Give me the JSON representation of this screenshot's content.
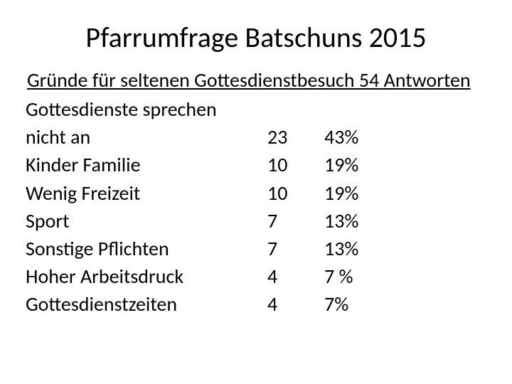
{
  "title": "Pfarrumfrage Batschuns 2015",
  "subtitle": "Gründe für seltenen  Gottesdienstbesuch 54 Antworten",
  "table": {
    "columns": [
      "label",
      "count",
      "percent"
    ],
    "rows": [
      {
        "label_line1": "Gottesdienste sprechen",
        "label_line2": "nicht an",
        "count": "23",
        "percent": "43%"
      },
      {
        "label_line1": "Kinder Familie",
        "label_line2": "",
        "count": "10",
        "percent": "19%"
      },
      {
        "label_line1": "Wenig Freizeit",
        "label_line2": "",
        "count": "10",
        "percent": "19%"
      },
      {
        "label_line1": "Sport",
        "label_line2": "",
        "count": "  7",
        "percent": "13%"
      },
      {
        "label_line1": "Sonstige Pflichten",
        "label_line2": "",
        "count": "7",
        "percent": "13%"
      },
      {
        "label_line1": "Hoher Arbeitsdruck",
        "label_line2": "",
        "count": "4",
        "percent": "7 %"
      },
      {
        "label_line1": "Gottesdienstzeiten",
        "label_line2": "",
        "count": "4",
        "percent": "7%"
      }
    ]
  },
  "style": {
    "background_color": "#ffffff",
    "text_color": "#000000",
    "title_fontsize": 40,
    "subtitle_fontsize": 28,
    "body_fontsize": 28,
    "font_family": "Calibri"
  }
}
